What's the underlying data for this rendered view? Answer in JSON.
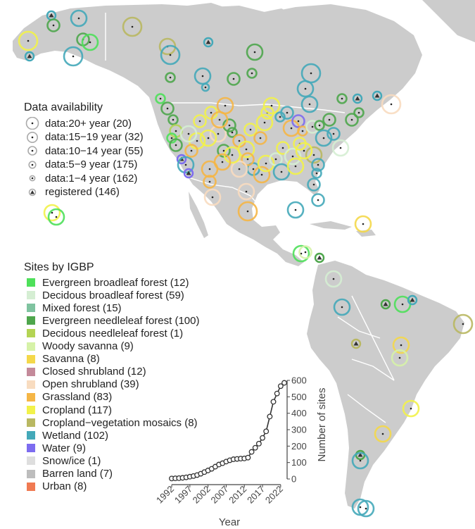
{
  "availability_legend": {
    "title": "Data availability",
    "items": [
      {
        "label": "data:20+ year (20)",
        "symbol": "ring-xl"
      },
      {
        "label": "data:15−19 year (32)",
        "symbol": "ring-l"
      },
      {
        "label": "data:10−14 year (55)",
        "symbol": "ring-m"
      },
      {
        "label": "data:5−9 year (175)",
        "symbol": "ring-s"
      },
      {
        "label": "data:1−4 year (162)",
        "symbol": "ring-xs"
      },
      {
        "label": "registered (146)",
        "symbol": "triangle"
      }
    ]
  },
  "igbp_legend": {
    "title": "Sites by IGBP",
    "items": [
      {
        "label": "Evergreen broadleaf forest (12)",
        "color": "#4ee05a"
      },
      {
        "label": "Decidous broadleaf forest (59)",
        "color": "#d5eed3"
      },
      {
        "label": "Mixed forest (15)",
        "color": "#7fc3a0"
      },
      {
        "label": "Evergreen needleleaf forest (100)",
        "color": "#4ea64c"
      },
      {
        "label": "Decidous needleleaf forest (1)",
        "color": "#b4d454"
      },
      {
        "label": "Woody savanna (9)",
        "color": "#d6f2a8"
      },
      {
        "label": "Savanna (8)",
        "color": "#f4d84a"
      },
      {
        "label": "Closed shrubland (12)",
        "color": "#c48a9a"
      },
      {
        "label": "Open shrubland (39)",
        "color": "#f8dcc0"
      },
      {
        "label": "Grassland (83)",
        "color": "#f5b646"
      },
      {
        "label": "Cropland (117)",
        "color": "#f2f24a"
      },
      {
        "label": "Cropland−vegetation mosaics (8)",
        "color": "#b9b862"
      },
      {
        "label": "Wetland (102)",
        "color": "#44a9b9"
      },
      {
        "label": "Water (9)",
        "color": "#7d6cf0"
      },
      {
        "label": "Snow/ice (1)",
        "color": "#dedede"
      },
      {
        "label": "Barren land (7)",
        "color": "#bdbdbd"
      },
      {
        "label": "Urban (8)",
        "color": "#f07a52"
      }
    ]
  },
  "chart_data": {
    "type": "line",
    "x": [
      1992,
      1993,
      1994,
      1995,
      1996,
      1997,
      1998,
      1999,
      2000,
      2001,
      2002,
      2003,
      2004,
      2005,
      2006,
      2007,
      2008,
      2009,
      2010,
      2011,
      2012,
      2013,
      2014,
      2015,
      2016,
      2017,
      2018,
      2019,
      2020,
      2021,
      2022,
      2023
    ],
    "values": [
      3,
      4,
      5,
      7,
      10,
      14,
      18,
      24,
      32,
      42,
      52,
      62,
      75,
      88,
      96,
      106,
      114,
      120,
      122,
      124,
      125,
      130,
      165,
      190,
      215,
      250,
      290,
      380,
      470,
      520,
      565,
      585
    ],
    "xticks": [
      "1992",
      "1997",
      "2002",
      "2007",
      "2012",
      "2017",
      "2022"
    ],
    "xtick_values": [
      1992,
      1997,
      2002,
      2007,
      2012,
      2017,
      2022
    ],
    "yticks": [
      "0",
      "100",
      "200",
      "300",
      "400",
      "500",
      "600"
    ],
    "ytick_values": [
      0,
      100,
      200,
      300,
      400,
      500,
      600
    ],
    "xlabel": "Year",
    "ylabel": "Number of sites",
    "xlim": [
      1992,
      2023
    ],
    "ylim": [
      0,
      600
    ],
    "line_color": "#333333",
    "marker_fill": "#ffffff"
  },
  "colors": {
    "land": "#cccccc",
    "ocean": "#ffffff",
    "border": "#ffffff",
    "ring": "#aaaaaa"
  }
}
